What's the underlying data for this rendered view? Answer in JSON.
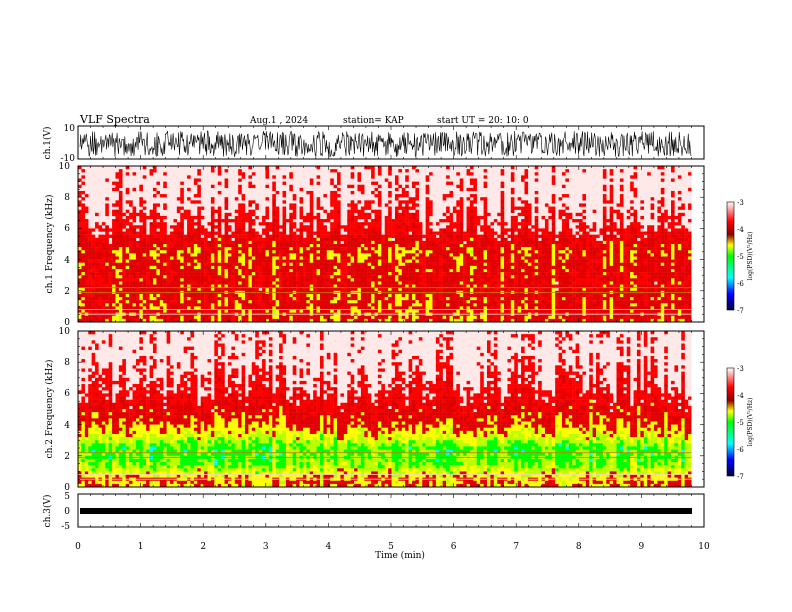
{
  "header": {
    "title": "VLF Spectra",
    "date": "Aug.1 , 2024",
    "station": "station= KAP",
    "start": "start UT = 20: 10: 0"
  },
  "chart_data": [
    {
      "type": "line",
      "panel": "ch1-waveform",
      "ylabel": "ch.1(V)",
      "ylim": [
        -10,
        10
      ],
      "yticks": [
        "10",
        "-10"
      ],
      "xlim": [
        0,
        10
      ],
      "description_values": {
        "min": -10,
        "max": 10,
        "data_end_min": 9.8
      }
    },
    {
      "type": "heatmap",
      "panel": "ch1-spectrogram",
      "ylabel": "ch.1 Frequency (kHz)",
      "ylim": [
        0,
        10
      ],
      "yticks": [
        "0",
        "2",
        "4",
        "6",
        "8",
        "10"
      ],
      "xlim": [
        0,
        10
      ],
      "colorbar": {
        "label": "log(PSD)(V²/Hz)",
        "range": [
          -7,
          -3
        ],
        "ticks": [
          "-3",
          "-4",
          "-5",
          "-6",
          "-7"
        ]
      },
      "intensity_profile": [
        {
          "f_khz": 0.5,
          "log_psd": -3.9
        },
        {
          "f_khz": 1.5,
          "log_psd": -3.8
        },
        {
          "f_khz": 2.5,
          "log_psd": -3.7
        },
        {
          "f_khz": 3.5,
          "log_psd": -3.8
        },
        {
          "f_khz": 4.5,
          "log_psd": -3.9
        },
        {
          "f_khz": 6.0,
          "log_psd": -3.4
        },
        {
          "f_khz": 8.5,
          "log_psd": -3.1
        }
      ]
    },
    {
      "type": "heatmap",
      "panel": "ch2-spectrogram",
      "ylabel": "ch.2 Frequency (kHz)",
      "ylim": [
        0,
        10
      ],
      "yticks": [
        "0",
        "2",
        "4",
        "6",
        "8",
        "10"
      ],
      "xlim": [
        0,
        10
      ],
      "colorbar": {
        "label": "log(PSD)(V²/Hz)",
        "range": [
          -7,
          -3
        ],
        "ticks": [
          "-3",
          "-4",
          "-5",
          "-6",
          "-7"
        ]
      },
      "intensity_profile": [
        {
          "f_khz": 0.5,
          "log_psd": -4.0
        },
        {
          "f_khz": 1.5,
          "log_psd": -4.6
        },
        {
          "f_khz": 2.5,
          "log_psd": -4.7
        },
        {
          "f_khz": 3.5,
          "log_psd": -4.1
        },
        {
          "f_khz": 4.5,
          "log_psd": -3.8
        },
        {
          "f_khz": 6.0,
          "log_psd": -3.4
        },
        {
          "f_khz": 8.5,
          "log_psd": -3.1
        }
      ]
    },
    {
      "type": "line",
      "panel": "ch3-waveform",
      "ylabel": "ch.3(V)",
      "ylim": [
        -5,
        5
      ],
      "yticks": [
        "5",
        "0",
        "-5"
      ],
      "xlim": [
        0,
        10
      ],
      "description_values": {
        "level": -1,
        "band_half_width": 0.5,
        "data_end_min": 9.8
      }
    }
  ],
  "xaxis": {
    "label": "Time (min)",
    "ticks": [
      "0",
      "1",
      "2",
      "3",
      "4",
      "5",
      "6",
      "7",
      "8",
      "9",
      "10"
    ]
  },
  "colors": {
    "dark_red": "#8b0000",
    "red": "#ff0000",
    "orange": "#ff8c00",
    "yellow": "#ffff00",
    "green": "#00ff00",
    "cyan": "#00ffff",
    "blue": "#0000ff",
    "navy": "#000040"
  }
}
